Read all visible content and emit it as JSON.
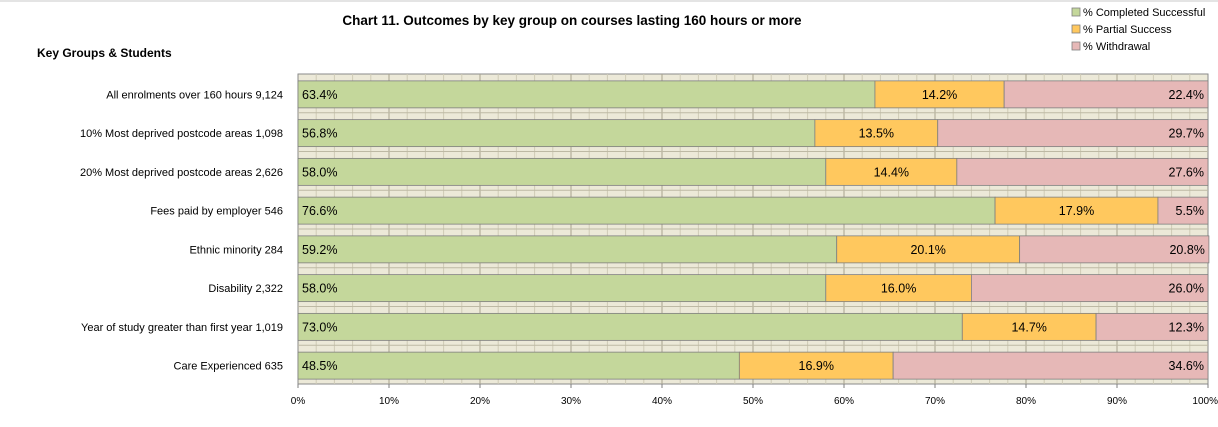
{
  "chart_data": {
    "type": "bar",
    "orientation": "horizontal",
    "stacked": true,
    "title": "Chart 11. Outcomes by key group on courses lasting 160 hours or more",
    "y_axis_title": "Key Groups & Students",
    "categories": [
      "All enrolments over 160 hours  9,124",
      "10% Most deprived postcode areas  1,098",
      "20% Most deprived postcode areas  2,626",
      "Fees paid by employer  546",
      "Ethnic minority  284",
      "Disability  2,322",
      "Year of study greater than first year  1,019",
      "Care Experienced  635"
    ],
    "series": [
      {
        "name": "% Completed Successful",
        "color": "#c4d79b",
        "values": [
          63.4,
          56.8,
          58.0,
          76.6,
          59.2,
          58.0,
          73.0,
          48.5
        ],
        "labels": [
          "63.4%",
          "56.8%",
          "58.0%",
          "76.6%",
          "59.2%",
          "58.0%",
          "73.0%",
          "48.5%"
        ],
        "label_position": "left"
      },
      {
        "name": "% Partial Success",
        "color": "#ffc85e",
        "values": [
          14.2,
          13.5,
          14.4,
          17.9,
          20.1,
          16.0,
          14.7,
          16.9
        ],
        "labels": [
          "14.2%",
          "13.5%",
          "14.4%",
          "17.9%",
          "20.1%",
          "16.0%",
          "14.7%",
          "16.9%"
        ],
        "label_position": "center"
      },
      {
        "name": "% Withdrawal",
        "color": "#e6b8b7",
        "values": [
          22.4,
          29.7,
          27.6,
          5.5,
          20.8,
          26.0,
          12.3,
          34.6
        ],
        "labels": [
          "22.4%",
          "29.7%",
          "27.6%",
          "5.5%",
          "20.8%",
          "26.0%",
          "12.3%",
          "34.6%"
        ],
        "label_position": "right"
      }
    ],
    "x_ticks": [
      "0%",
      "10%",
      "20%",
      "30%",
      "40%",
      "50%",
      "60%",
      "70%",
      "80%",
      "90%",
      "100%"
    ],
    "xlim": [
      0,
      100
    ],
    "legend_position": "top-right",
    "plot_background": "#ece9d8",
    "grid": true
  }
}
